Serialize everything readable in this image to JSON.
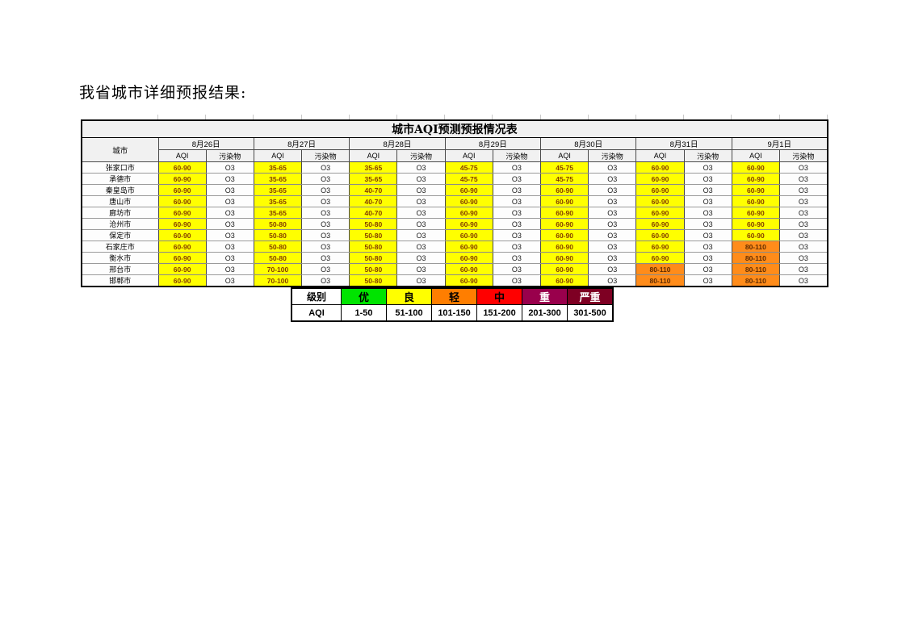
{
  "page": {
    "heading": "我省城市详细预报结果:"
  },
  "colors": {
    "table_yellow": "#FFFF00",
    "table_orange": "#FF8C1A",
    "aqi_value_text": "#833C00"
  },
  "forecast_table": {
    "title": "城市AQI预测预报情况表",
    "city_header": "城市",
    "dates": [
      "8月26日",
      "8月27日",
      "8月28日",
      "8月29日",
      "8月30日",
      "8月31日",
      "9月1日"
    ],
    "sub_headers": [
      "AQI",
      "污染物"
    ],
    "rows": [
      {
        "city": "张家口市",
        "aqi": [
          "60-90",
          "35-65",
          "35-65",
          "45-75",
          "45-75",
          "60-90",
          "60-90"
        ],
        "pollutant": [
          "O3",
          "O3",
          "O3",
          "O3",
          "O3",
          "O3",
          "O3"
        ],
        "levels": [
          "yellow",
          "yellow",
          "yellow",
          "yellow",
          "yellow",
          "yellow",
          "yellow"
        ]
      },
      {
        "city": "承德市",
        "aqi": [
          "60-90",
          "35-65",
          "35-65",
          "45-75",
          "45-75",
          "60-90",
          "60-90"
        ],
        "pollutant": [
          "O3",
          "O3",
          "O3",
          "O3",
          "O3",
          "O3",
          "O3"
        ],
        "levels": [
          "yellow",
          "yellow",
          "yellow",
          "yellow",
          "yellow",
          "yellow",
          "yellow"
        ]
      },
      {
        "city": "秦皇岛市",
        "aqi": [
          "60-90",
          "35-65",
          "40-70",
          "60-90",
          "60-90",
          "60-90",
          "60-90"
        ],
        "pollutant": [
          "O3",
          "O3",
          "O3",
          "O3",
          "O3",
          "O3",
          "O3"
        ],
        "levels": [
          "yellow",
          "yellow",
          "yellow",
          "yellow",
          "yellow",
          "yellow",
          "yellow"
        ]
      },
      {
        "city": "唐山市",
        "aqi": [
          "60-90",
          "35-65",
          "40-70",
          "60-90",
          "60-90",
          "60-90",
          "60-90"
        ],
        "pollutant": [
          "O3",
          "O3",
          "O3",
          "O3",
          "O3",
          "O3",
          "O3"
        ],
        "levels": [
          "yellow",
          "yellow",
          "yellow",
          "yellow",
          "yellow",
          "yellow",
          "yellow"
        ]
      },
      {
        "city": "廊坊市",
        "aqi": [
          "60-90",
          "35-65",
          "40-70",
          "60-90",
          "60-90",
          "60-90",
          "60-90"
        ],
        "pollutant": [
          "O3",
          "O3",
          "O3",
          "O3",
          "O3",
          "O3",
          "O3"
        ],
        "levels": [
          "yellow",
          "yellow",
          "yellow",
          "yellow",
          "yellow",
          "yellow",
          "yellow"
        ]
      },
      {
        "city": "沧州市",
        "aqi": [
          "60-90",
          "50-80",
          "50-80",
          "60-90",
          "60-90",
          "60-90",
          "60-90"
        ],
        "pollutant": [
          "O3",
          "O3",
          "O3",
          "O3",
          "O3",
          "O3",
          "O3"
        ],
        "levels": [
          "yellow",
          "yellow",
          "yellow",
          "yellow",
          "yellow",
          "yellow",
          "yellow"
        ]
      },
      {
        "city": "保定市",
        "aqi": [
          "60-90",
          "50-80",
          "50-80",
          "60-90",
          "60-90",
          "60-90",
          "60-90"
        ],
        "pollutant": [
          "O3",
          "O3",
          "O3",
          "O3",
          "O3",
          "O3",
          "O3"
        ],
        "levels": [
          "yellow",
          "yellow",
          "yellow",
          "yellow",
          "yellow",
          "yellow",
          "yellow"
        ]
      },
      {
        "city": "石家庄市",
        "aqi": [
          "60-90",
          "50-80",
          "50-80",
          "60-90",
          "60-90",
          "60-90",
          "80-110"
        ],
        "pollutant": [
          "O3",
          "O3",
          "O3",
          "O3",
          "O3",
          "O3",
          "O3"
        ],
        "levels": [
          "yellow",
          "yellow",
          "yellow",
          "yellow",
          "yellow",
          "yellow",
          "orange"
        ]
      },
      {
        "city": "衡水市",
        "aqi": [
          "60-90",
          "50-80",
          "50-80",
          "60-90",
          "60-90",
          "60-90",
          "80-110"
        ],
        "pollutant": [
          "O3",
          "O3",
          "O3",
          "O3",
          "O3",
          "O3",
          "O3"
        ],
        "levels": [
          "yellow",
          "yellow",
          "yellow",
          "yellow",
          "yellow",
          "yellow",
          "orange"
        ]
      },
      {
        "city": "邢台市",
        "aqi": [
          "60-90",
          "70-100",
          "50-80",
          "60-90",
          "60-90",
          "80-110",
          "80-110"
        ],
        "pollutant": [
          "O3",
          "O3",
          "O3",
          "O3",
          "O3",
          "O3",
          "O3"
        ],
        "levels": [
          "yellow",
          "yellow",
          "yellow",
          "yellow",
          "yellow",
          "orange",
          "orange"
        ]
      },
      {
        "city": "邯郸市",
        "aqi": [
          "60-90",
          "70-100",
          "50-80",
          "60-90",
          "60-90",
          "80-110",
          "80-110"
        ],
        "pollutant": [
          "O3",
          "O3",
          "O3",
          "O3",
          "O3",
          "O3",
          "O3"
        ],
        "levels": [
          "yellow",
          "yellow",
          "yellow",
          "yellow",
          "yellow",
          "orange",
          "orange"
        ]
      }
    ]
  },
  "legend_table": {
    "row1_header": "级别",
    "row2_header": "AQI",
    "levels": [
      {
        "label": "优",
        "range": "1-50",
        "bg": "#00E400",
        "fg": "#000000"
      },
      {
        "label": "良",
        "range": "51-100",
        "bg": "#FFFF00",
        "fg": "#000000"
      },
      {
        "label": "轻",
        "range": "101-150",
        "bg": "#FF7E00",
        "fg": "#000000"
      },
      {
        "label": "中",
        "range": "151-200",
        "bg": "#FF0000",
        "fg": "#000000"
      },
      {
        "label": "重",
        "range": "201-300",
        "bg": "#99004C",
        "fg": "#FFFFFF"
      },
      {
        "label": "严重",
        "range": "301-500",
        "bg": "#7E0023",
        "fg": "#FFFFFF"
      }
    ]
  }
}
